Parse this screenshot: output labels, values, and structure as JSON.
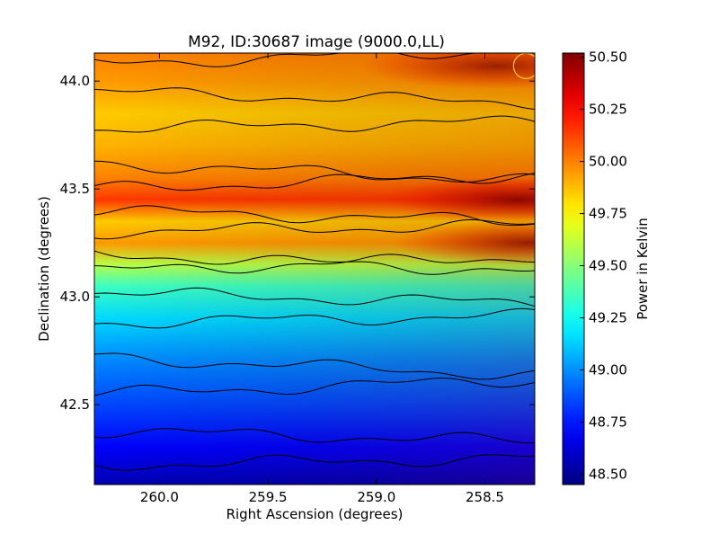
{
  "chart_data": {
    "type": "heatmap",
    "title": "M92, ID:30687 image (9000.0,LL)",
    "xlabel": "Right Ascension (degrees)",
    "ylabel": "Declination (degrees)",
    "xlim": [
      260.3,
      258.27
    ],
    "ylim": [
      42.13,
      44.13
    ],
    "x_ticks": [
      {
        "value": 260.0,
        "label": "260.0"
      },
      {
        "value": 259.5,
        "label": "259.5"
      },
      {
        "value": 259.0,
        "label": "259.0"
      },
      {
        "value": 258.5,
        "label": "258.5"
      }
    ],
    "y_ticks": [
      {
        "value": 42.5,
        "label": "42.5"
      },
      {
        "value": 43.0,
        "label": "43.0"
      },
      {
        "value": 43.5,
        "label": "43.5"
      },
      {
        "value": 44.0,
        "label": "44.0"
      }
    ],
    "colorbar": {
      "label": "Power in Kelvin",
      "range": [
        48.45,
        50.52
      ],
      "ticks": [
        {
          "value": 48.5,
          "label": "48.50"
        },
        {
          "value": 48.75,
          "label": "48.75"
        },
        {
          "value": 49.0,
          "label": "49.00"
        },
        {
          "value": 49.25,
          "label": "49.25"
        },
        {
          "value": 49.5,
          "label": "49.50"
        },
        {
          "value": 49.75,
          "label": "49.75"
        },
        {
          "value": 50.0,
          "label": "50.00"
        },
        {
          "value": 50.25,
          "label": "50.25"
        },
        {
          "value": 50.5,
          "label": "50.50"
        }
      ],
      "colormap": "jet"
    },
    "dec_profile": [
      {
        "dec": 42.13,
        "value": 48.55
      },
      {
        "dec": 42.3,
        "value": 48.7
      },
      {
        "dec": 42.5,
        "value": 48.85
      },
      {
        "dec": 42.7,
        "value": 48.98
      },
      {
        "dec": 42.9,
        "value": 49.15
      },
      {
        "dec": 43.05,
        "value": 49.35
      },
      {
        "dec": 43.15,
        "value": 49.6
      },
      {
        "dec": 43.25,
        "value": 49.95
      },
      {
        "dec": 43.35,
        "value": 49.85
      },
      {
        "dec": 43.45,
        "value": 50.15
      },
      {
        "dec": 43.55,
        "value": 50.0
      },
      {
        "dec": 43.7,
        "value": 49.9
      },
      {
        "dec": 43.85,
        "value": 49.85
      },
      {
        "dec": 44.0,
        "value": 49.95
      },
      {
        "dec": 44.13,
        "value": 50.0
      }
    ],
    "ra_gradient_kelvin_per_degree": 0.32,
    "hotspots": [
      {
        "ra": 258.35,
        "dec": 43.45,
        "value": 50.5
      },
      {
        "ra": 258.3,
        "dec": 43.25,
        "value": 50.3
      },
      {
        "ra": 258.45,
        "dec": 44.07,
        "value": 50.2
      }
    ],
    "marker": {
      "shape": "circle",
      "ra": 258.31,
      "dec": 44.07,
      "color": "#ffcc33"
    },
    "grid": false,
    "contours": true
  }
}
